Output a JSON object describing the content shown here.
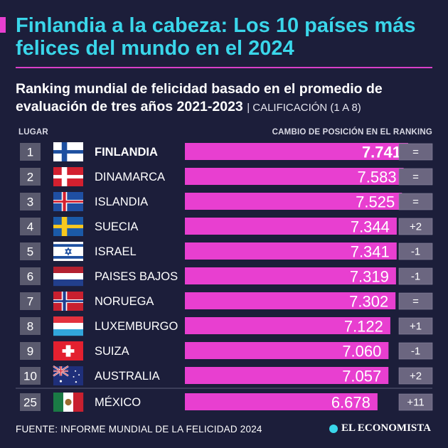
{
  "header": {
    "title": "Finlandia a la cabeza: Los 10 países más felices del mundo en el 2024",
    "subtitle": "Ranking mundial de felicidad basado en el promedio de evaluación de tres años 2021-2023",
    "subtitle_note": "| CALIFICACIÓN (1 A 8)"
  },
  "columns": {
    "rank_label": "LUGAR",
    "change_label": "CAMBIO DE POSICIÓN EN EL RANKING"
  },
  "colors": {
    "background": "#1c1e3a",
    "bar": "#e83fd0",
    "title": "#3ad6ea",
    "rank_box": "#5a5a6e",
    "change_box": "#6b6680"
  },
  "chart_data": {
    "type": "bar",
    "orientation": "horizontal",
    "scale_max": 8,
    "rows": [
      {
        "rank": "1",
        "country": "FINLANDIA",
        "value": 7.741,
        "label": "7.741",
        "change": "=",
        "flag": "finland-flag-icon",
        "highlight": true
      },
      {
        "rank": "2",
        "country": "DINAMARCA",
        "value": 7.583,
        "label": "7.583",
        "change": "=",
        "flag": "denmark-flag-icon"
      },
      {
        "rank": "3",
        "country": "ISLANDIA",
        "value": 7.525,
        "label": "7.525",
        "change": "=",
        "flag": "iceland-flag-icon"
      },
      {
        "rank": "4",
        "country": "SUECIA",
        "value": 7.344,
        "label": "7.344",
        "change": "+2",
        "flag": "sweden-flag-icon"
      },
      {
        "rank": "5",
        "country": "ISRAEL",
        "value": 7.341,
        "label": "7.341",
        "change": "-1",
        "flag": "israel-flag-icon"
      },
      {
        "rank": "6",
        "country": "PAISES BAJOS",
        "value": 7.319,
        "label": "7.319",
        "change": "-1",
        "flag": "netherlands-flag-icon"
      },
      {
        "rank": "7",
        "country": "NORUEGA",
        "value": 7.302,
        "label": "7.302",
        "change": "=",
        "flag": "norway-flag-icon"
      },
      {
        "rank": "8",
        "country": "LUXEMBURGO",
        "value": 7.122,
        "label": "7.122",
        "change": "+1",
        "flag": "luxembourg-flag-icon"
      },
      {
        "rank": "9",
        "country": "SUIZA",
        "value": 7.06,
        "label": "7.060",
        "change": "-1",
        "flag": "switzerland-flag-icon"
      },
      {
        "rank": "10",
        "country": "AUSTRALIA",
        "value": 7.057,
        "label": "7.057",
        "change": "+2",
        "flag": "australia-flag-icon"
      },
      {
        "rank": "25",
        "country": "MÉXICO",
        "value": 6.678,
        "label": "6.678",
        "change": "+11",
        "flag": "mexico-flag-icon"
      }
    ]
  },
  "footer": {
    "source": "FUENTE: INFORME MUNDIAL DE LA FELICIDAD 2024",
    "brand": "EL ECONOMISTA"
  }
}
